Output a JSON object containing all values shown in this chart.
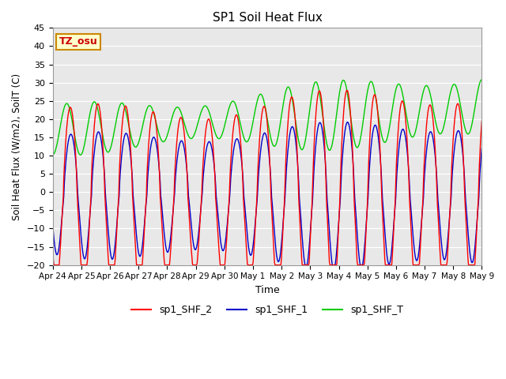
{
  "title": "SP1 Soil Heat Flux",
  "xlabel": "Time",
  "ylabel": "Soil Heat Flux (W/m2), SoilT (C)",
  "ylim": [
    -20,
    45
  ],
  "yticks": [
    -20,
    -15,
    -10,
    -5,
    0,
    5,
    10,
    15,
    20,
    25,
    30,
    35,
    40,
    45
  ],
  "color_red": "#ff0000",
  "color_blue": "#0000cc",
  "color_green": "#00cc00",
  "legend_labels": [
    "sp1_SHF_2",
    "sp1_SHF_1",
    "sp1_SHF_T"
  ],
  "annotation_text": "TZ_osu",
  "annotation_color": "#cc0000",
  "annotation_bg": "#ffffcc",
  "annotation_border": "#cc8800",
  "background_color": "#e8e8e8",
  "xtick_labels": [
    "Apr 24",
    "Apr 25",
    "Apr 26",
    "Apr 27",
    "Apr 28",
    "Apr 29",
    "Apr 30",
    "May 1",
    "May 2",
    "May 3",
    "May 4",
    "May 5",
    "May 6",
    "May 7",
    "May 8",
    "May 9"
  ],
  "num_days": 15.5,
  "samples_per_day": 48
}
